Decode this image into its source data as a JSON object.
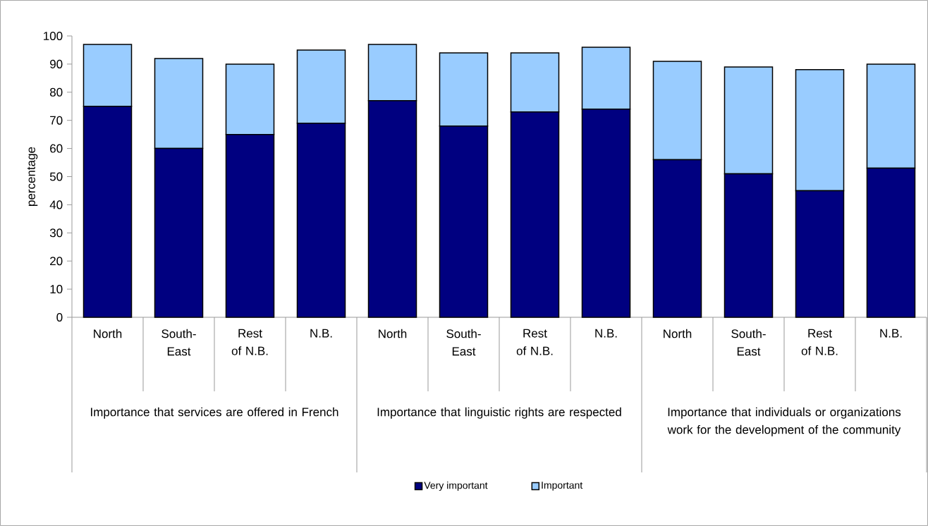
{
  "chart_data": {
    "type": "bar",
    "stacked": true,
    "ylabel": "percentage",
    "categories": [
      "North",
      "South-East",
      "Rest of N.B.",
      "N.B.",
      "North",
      "South-East",
      "Rest of N.B.",
      "N.B.",
      "North",
      "South-East",
      "Rest of N.B.",
      "N.B."
    ],
    "annotations": [
      "Importance that services are offered in French",
      "Importance that linguistic rights are respected",
      "Importance that individuals or organizations work for the development of the community"
    ],
    "series": [
      {
        "name": "Very important",
        "color": "#000080",
        "values": [
          75,
          60,
          65,
          69,
          77,
          68,
          73,
          74,
          56,
          51,
          45,
          53
        ]
      },
      {
        "name": "Important",
        "color": "#99ccff",
        "values": [
          22,
          32,
          25,
          26,
          20,
          26,
          21,
          22,
          35,
          38,
          43,
          37
        ]
      }
    ],
    "ylim": [
      0,
      100
    ],
    "yticks": [
      0,
      10,
      20,
      30,
      40,
      50,
      60,
      70,
      80,
      90,
      100
    ],
    "legend": "bottom"
  }
}
